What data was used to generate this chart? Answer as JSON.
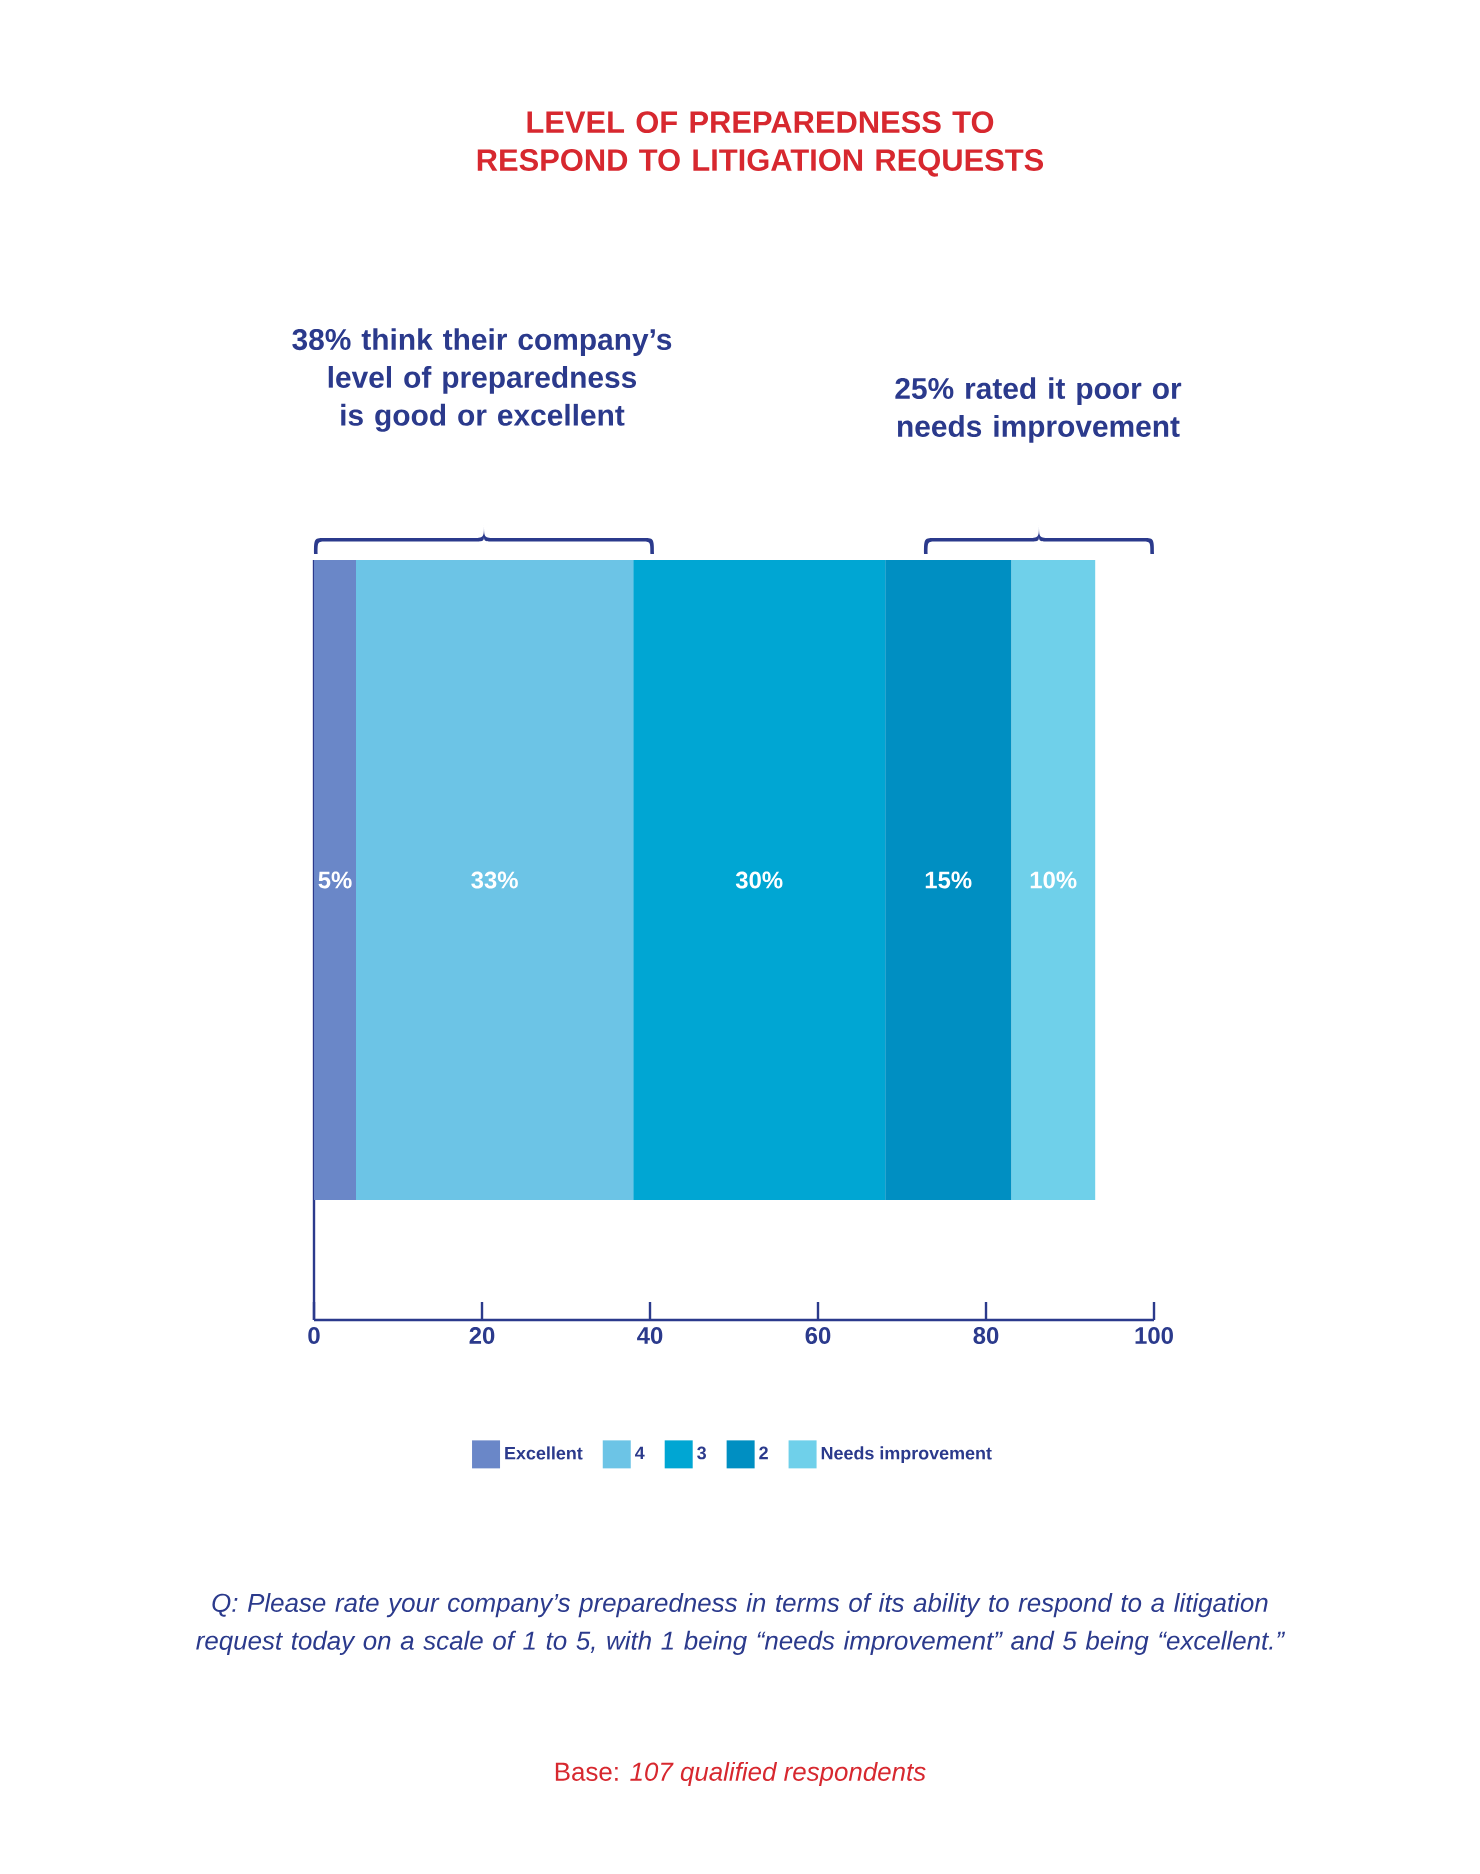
{
  "chart_data": {
    "type": "bar",
    "orientation": "horizontal",
    "stacked": true,
    "title": "LEVEL OF PREPAREDNESS TO RESPOND TO LITIGATION REQUESTS",
    "categories": [
      null
    ],
    "series": [
      {
        "name": "Excellent",
        "color": "#6a87c8",
        "values": [
          5
        ],
        "value_labels": [
          "5%"
        ]
      },
      {
        "name": "4",
        "color": "#6cc4e6",
        "values": [
          33
        ],
        "value_labels": [
          "33%"
        ]
      },
      {
        "name": "3",
        "color": "#00a6d3",
        "values": [
          30
        ],
        "value_labels": [
          "30%"
        ]
      },
      {
        "name": "2",
        "color": "#008fc2",
        "values": [
          15
        ],
        "value_labels": [
          "15%"
        ]
      },
      {
        "name": "Needs improvement",
        "color": "#6fd0ea",
        "values": [
          10
        ],
        "value_labels": [
          "10%"
        ]
      }
    ],
    "xlim": [
      0,
      100
    ],
    "xticks": [
      0,
      20,
      40,
      60,
      80,
      100
    ],
    "legend": "bottom",
    "grid": false,
    "annotations": [
      "38% think their company’s level of preparedness is good or excellent",
      "25% rated it poor or needs improvement",
      "Q: Please rate your company’s preparedness in terms of its ability to respond to a litigation request today on a scale of 1 to 5, with 1 being “needs improvement” and 5 being “excellent.”",
      "Base: *107 qualified respondents*"
    ]
  }
}
